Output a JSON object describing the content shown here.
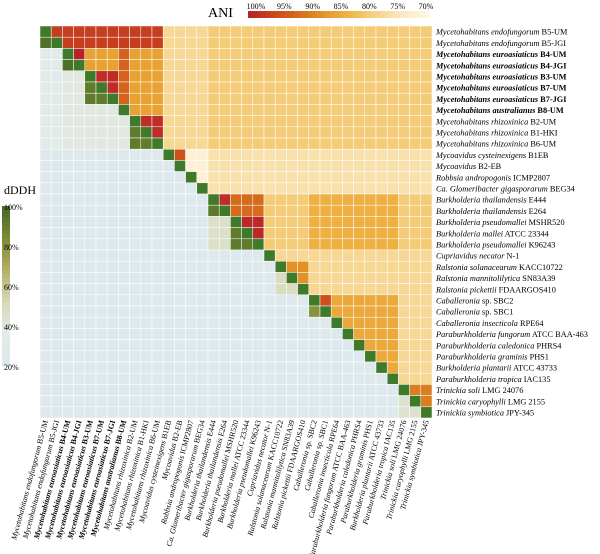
{
  "chart_data": {
    "type": "heatmap",
    "ani_label": "ANI",
    "ani_ticks": [
      "100%",
      "95%",
      "90%",
      "85%",
      "80%",
      "75%",
      "70%"
    ],
    "ani_colors": [
      "#b8232a",
      "#cc4a1c",
      "#d7701c",
      "#e39a2a",
      "#f1b849",
      "#f5d48d",
      "#fae9c3",
      "#fdf7e8"
    ],
    "ddh_label": "dDDH",
    "ddh_ticks": [
      "100%",
      "80%",
      "60%",
      "40%",
      "20%"
    ],
    "ddh_colors": [
      "#466b25",
      "#7e8c33",
      "#b3b06a",
      "#d6d8b3",
      "#e3ebe9",
      "#dde9ee"
    ],
    "taxa": [
      {
        "name": "Mycetohabitans endofungorum",
        "strain": "B5-UM",
        "bold": false
      },
      {
        "name": "Mycetohabitans endofungorum",
        "strain": "B5-JGI",
        "bold": false
      },
      {
        "name": "Mycetohabitans euroasiaticus",
        "strain": "B4-UM",
        "bold": true
      },
      {
        "name": "Mycetohabitans euroasiaticus",
        "strain": "B4-JGI",
        "bold": true
      },
      {
        "name": "Mycetohabitans euroasiaticus",
        "strain": "B3-UM",
        "bold": true
      },
      {
        "name": "Mycetohabitans euroasiaticus",
        "strain": "B7-UM",
        "bold": true
      },
      {
        "name": "Mycetohabitans euroasiaticus",
        "strain": "B7-JGI",
        "bold": true
      },
      {
        "name": "Mycetohabitans australianus",
        "strain": "B8-UM",
        "bold": true
      },
      {
        "name": "Mycetohabitans rhizoxinica",
        "strain": "B2-UM",
        "bold": false
      },
      {
        "name": "Mycetohabitans rhizoxinica",
        "strain": "B1-HKI",
        "bold": false
      },
      {
        "name": "Mycetohabitans rhizoxinica",
        "strain": "B6-UM",
        "bold": false
      },
      {
        "name": "Mycoavidus cysteinexigens",
        "strain": "B1EB",
        "bold": false
      },
      {
        "name": "Mycoavidus",
        "strain": "B2-EB",
        "bold": false
      },
      {
        "name": "Robbsia andropogonis",
        "strain": "ICMP2807",
        "bold": false
      },
      {
        "name": "Ca. Glomeribacter gigasporarum",
        "strain": "BEG34",
        "bold": false
      },
      {
        "name": "Burkholderia thailandensis",
        "strain": "E444",
        "bold": false
      },
      {
        "name": "Burkholderia thailandensis",
        "strain": "E264",
        "bold": false
      },
      {
        "name": "Burkholderia pseudomallei",
        "strain": "MSHR520",
        "bold": false
      },
      {
        "name": "Burkholderia mallei",
        "strain": "ATCC 23344",
        "bold": false
      },
      {
        "name": "Burkholderia pseudomallei",
        "strain": "K96243",
        "bold": false
      },
      {
        "name": "Cupriavidus necator",
        "strain": "N-1",
        "bold": false
      },
      {
        "name": "Ralstonia solanacearum",
        "strain": "KACC10722",
        "bold": false
      },
      {
        "name": "Ralstonia mannitolilytica",
        "strain": "SN83A39",
        "bold": false
      },
      {
        "name": "Ralstonia pickettii",
        "strain": "FDAARGOS410",
        "bold": false
      },
      {
        "name": "Caballeronia",
        "strain": "sp. SBC2",
        "bold": false
      },
      {
        "name": "Caballeronia",
        "strain": "sp. SBC1",
        "bold": false
      },
      {
        "name": "Caballeronia insecticola",
        "strain": "RPE64",
        "bold": false
      },
      {
        "name": "Paraburkholderia fungorum",
        "strain": "ATCC BAA-463",
        "bold": false
      },
      {
        "name": "Paraburkholderia caledonica",
        "strain": "PHRS4",
        "bold": false
      },
      {
        "name": "Paraburkholderia graminis",
        "strain": "PHS1",
        "bold": false
      },
      {
        "name": "Burkholderia plantarii",
        "strain": "ATCC 43733",
        "bold": false
      },
      {
        "name": "Paraburkholderia tropica",
        "strain": "IAC135",
        "bold": false
      },
      {
        "name": "Trinickia soli",
        "strain": "LMG 24076",
        "bold": false
      },
      {
        "name": "Trinickia caryophylli",
        "strain": "LMG 2155",
        "bold": false
      },
      {
        "name": "Trinickia symbiotica",
        "strain": "JPY-345",
        "bold": false
      }
    ],
    "ani_blocks": [
      {
        "rows": [
          0,
          1
        ],
        "cols": [
          0,
          10
        ],
        "value": 0.97
      },
      {
        "rows": [
          2,
          7
        ],
        "cols": [
          2,
          10
        ],
        "value": 0.86
      },
      {
        "rows": [
          2,
          3
        ],
        "cols": [
          2,
          3
        ],
        "value": 1.0
      },
      {
        "rows": [
          4,
          6
        ],
        "cols": [
          4,
          6
        ],
        "value": 0.99
      },
      {
        "rows": [
          2,
          7
        ],
        "cols": [
          7,
          7
        ],
        "value": 0.93
      },
      {
        "rows": [
          8,
          10
        ],
        "cols": [
          8,
          10
        ],
        "value": 0.99
      },
      {
        "rows": [
          0,
          10
        ],
        "cols": [
          11,
          14
        ],
        "value": 0.78
      },
      {
        "rows": [
          0,
          10
        ],
        "cols": [
          15,
          34
        ],
        "value": 0.8
      },
      {
        "rows": [
          11,
          12
        ],
        "cols": [
          11,
          12
        ],
        "value": 0.95
      },
      {
        "rows": [
          11,
          14
        ],
        "cols": [
          15,
          34
        ],
        "value": 0.76
      },
      {
        "rows": [
          15,
          19
        ],
        "cols": [
          15,
          19
        ],
        "value": 0.92
      },
      {
        "rows": [
          15,
          16
        ],
        "cols": [
          15,
          16
        ],
        "value": 0.99
      },
      {
        "rows": [
          17,
          19
        ],
        "cols": [
          17,
          19
        ],
        "value": 0.995
      },
      {
        "rows": [
          15,
          19
        ],
        "cols": [
          20,
          34
        ],
        "value": 0.8
      },
      {
        "rows": [
          15,
          19
        ],
        "cols": [
          24,
          31
        ],
        "value": 0.84
      },
      {
        "rows": [
          20,
          34
        ],
        "cols": [
          20,
          34
        ],
        "value": 0.78
      },
      {
        "rows": [
          21,
          23
        ],
        "cols": [
          21,
          23
        ],
        "value": 0.88
      },
      {
        "rows": [
          24,
          31
        ],
        "cols": [
          24,
          31
        ],
        "value": 0.85
      },
      {
        "rows": [
          24,
          25
        ],
        "cols": [
          24,
          25
        ],
        "value": 0.95
      },
      {
        "rows": [
          32,
          34
        ],
        "cols": [
          32,
          34
        ],
        "value": 0.9
      }
    ],
    "ddh_blocks": [
      {
        "rows": [
          0,
          10
        ],
        "cols": [
          0,
          1
        ],
        "value": 0.3
      },
      {
        "rows": [
          1,
          1
        ],
        "cols": [
          0,
          0
        ],
        "value": 0.97
      },
      {
        "rows": [
          2,
          10
        ],
        "cols": [
          2,
          7
        ],
        "value": 0.35
      },
      {
        "rows": [
          3,
          3
        ],
        "cols": [
          2,
          2
        ],
        "value": 0.98
      },
      {
        "rows": [
          5,
          6
        ],
        "cols": [
          4,
          5
        ],
        "value": 0.92
      },
      {
        "rows": [
          8,
          10
        ],
        "cols": [
          8,
          9
        ],
        "value": 0.92
      },
      {
        "rows": [
          15,
          19
        ],
        "cols": [
          15,
          18
        ],
        "value": 0.42
      },
      {
        "rows": [
          16,
          16
        ],
        "cols": [
          15,
          15
        ],
        "value": 0.93
      },
      {
        "rows": [
          18,
          19
        ],
        "cols": [
          17,
          18
        ],
        "value": 0.92
      },
      {
        "rows": [
          22,
          23
        ],
        "cols": [
          21,
          22
        ],
        "value": 0.45
      },
      {
        "rows": [
          25,
          25
        ],
        "cols": [
          24,
          24
        ],
        "value": 0.8
      },
      {
        "rows": [
          33,
          34
        ],
        "cols": [
          32,
          33
        ],
        "value": 0.4
      }
    ]
  }
}
